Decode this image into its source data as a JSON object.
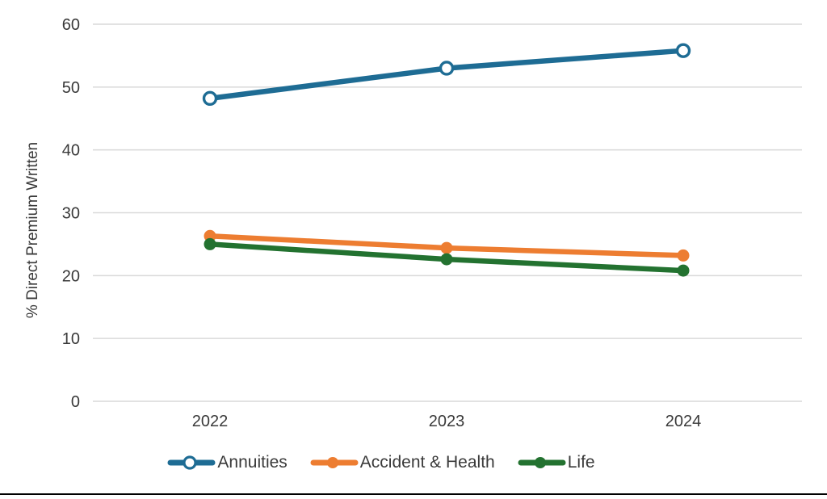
{
  "chart_data": {
    "type": "line",
    "title": "",
    "xlabel": "",
    "ylabel": "% Direct Premium Written",
    "categories": [
      "2022",
      "2023",
      "2024"
    ],
    "series": [
      {
        "name": "Annuities",
        "values": [
          48.2,
          53.0,
          55.8
        ],
        "color": "#1E6C94",
        "marker": "open-circle"
      },
      {
        "name": "Accident & Health",
        "values": [
          26.3,
          24.4,
          23.2
        ],
        "color": "#ED7D31",
        "marker": "filled-circle"
      },
      {
        "name": "Life",
        "values": [
          25.0,
          22.6,
          20.8
        ],
        "color": "#237230",
        "marker": "filled-circle"
      }
    ],
    "ylim": [
      0,
      60
    ],
    "yticks": [
      0,
      10,
      20,
      30,
      40,
      50,
      60
    ],
    "grid": "horizontal-only",
    "gridline_color": "#D9D9D9",
    "axis_text_color": "#3A3A3A",
    "legend_position": "bottom",
    "frame_bottom_color": "#000000"
  }
}
